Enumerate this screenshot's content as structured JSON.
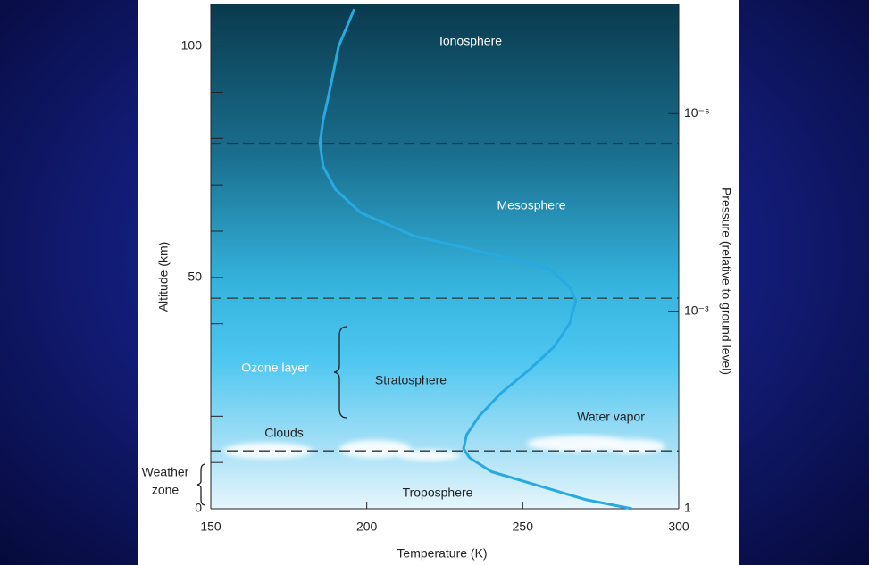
{
  "chart_data": {
    "type": "line",
    "x": [
      285,
      270,
      255,
      240,
      233,
      231,
      232,
      236,
      243,
      252,
      260,
      265,
      267,
      265,
      258,
      240,
      215,
      198,
      190,
      186,
      185,
      186,
      188,
      191,
      196
    ],
    "values": [
      0,
      2,
      5,
      8,
      11,
      13,
      16,
      20,
      25,
      30,
      35,
      40,
      45,
      48,
      52,
      55,
      59,
      64,
      69,
      74,
      79,
      84,
      90,
      100,
      108
    ],
    "color": "#29a9e1",
    "xlabel": "Temperature (K)",
    "ylabel": "Altitude (km)",
    "y2label": "Pressure (relative to ground level)",
    "xlim": [
      150,
      300
    ],
    "xticks": [
      150,
      200,
      250,
      300
    ],
    "ylim": [
      0,
      109
    ],
    "yticks": [
      0,
      50,
      100
    ],
    "yminorticks": [
      10,
      20,
      30,
      40,
      60,
      70,
      80,
      90
    ],
    "y2lim": [
      1,
      2.2e-08
    ],
    "y2scale": "log",
    "y2ticks": [
      {
        "value": 1e-06,
        "label": "10⁻⁶"
      },
      {
        "value": 0.001,
        "label": "10⁻³"
      },
      1
    ],
    "boundaries": [
      12.5,
      45.5,
      79
    ],
    "annotations": [
      "Ionosphere",
      "Mesosphere",
      "Stratosphere",
      "Troposphere",
      "Ozone layer",
      "Clouds",
      "Water vapor",
      "Weather",
      "zone"
    ]
  }
}
